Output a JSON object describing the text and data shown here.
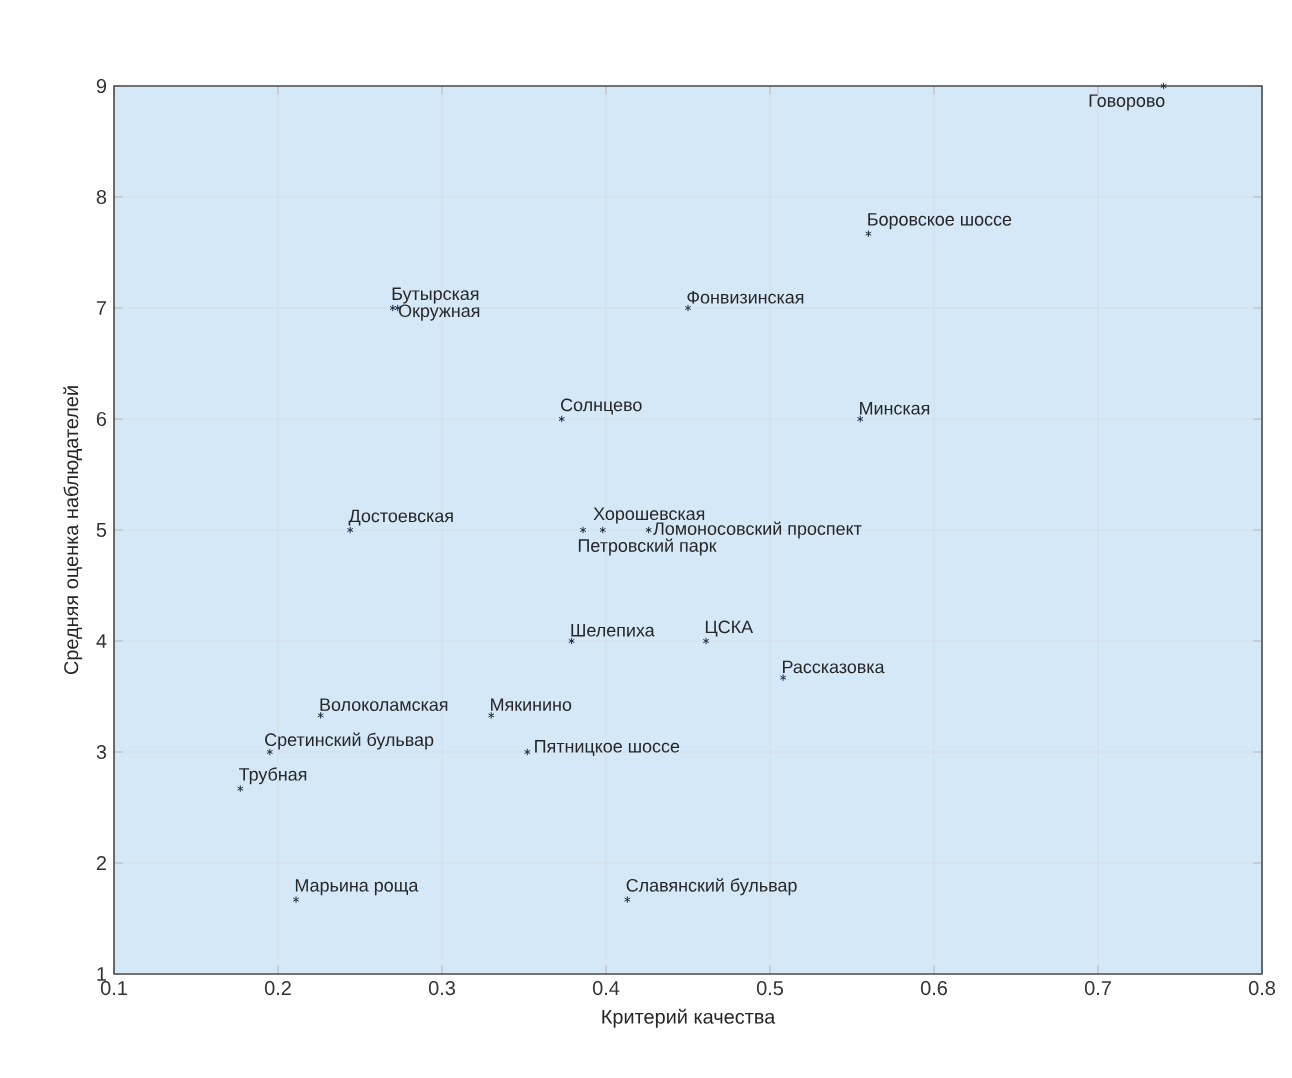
{
  "chart_data": {
    "type": "scatter",
    "xlabel": "Критерий качества",
    "ylabel": "Средняя оценка наблюдателей",
    "series": [
      {
        "color": "#202a44",
        "marker": "cross",
        "x": [
          0.74,
          0.56,
          0.45,
          0.27,
          0.273,
          0.373,
          0.555,
          0.244,
          0.398,
          0.386,
          0.426,
          0.379,
          0.461,
          0.508,
          0.226,
          0.33,
          0.195,
          0.352,
          0.177,
          0.211,
          0.413
        ],
        "values": [
          9,
          7.67,
          7,
          7,
          7,
          6,
          6,
          5,
          5,
          5,
          5,
          4,
          4,
          3.67,
          3.33,
          3.33,
          3,
          3,
          2.67,
          1.67,
          1.67
        ]
      }
    ],
    "annotations": [
      {
        "text": "Говорово",
        "x": 0.74,
        "y": 9
      },
      {
        "text": "Боровское шоссе",
        "x": 0.56,
        "y": 7.67
      },
      {
        "text": "Фонвизинская",
        "x": 0.45,
        "y": 7
      },
      {
        "text": "Бутырская",
        "x": 0.27,
        "y": 7
      },
      {
        "text": "Окружная",
        "x": 0.273,
        "y": 7
      },
      {
        "text": "Солнцево",
        "x": 0.373,
        "y": 6
      },
      {
        "text": "Минская",
        "x": 0.555,
        "y": 6
      },
      {
        "text": "Достоевская",
        "x": 0.244,
        "y": 5
      },
      {
        "text": "Хорошевская",
        "x": 0.398,
        "y": 5
      },
      {
        "text": "Петровский парк",
        "x": 0.386,
        "y": 5
      },
      {
        "text": "Ломоносовский проспект",
        "x": 0.426,
        "y": 5
      },
      {
        "text": "Шелепиха",
        "x": 0.379,
        "y": 4
      },
      {
        "text": "ЦСКА",
        "x": 0.461,
        "y": 4
      },
      {
        "text": "Рассказовка",
        "x": 0.508,
        "y": 3.67
      },
      {
        "text": "Волоколамская",
        "x": 0.226,
        "y": 3.33
      },
      {
        "text": "Мякинино",
        "x": 0.33,
        "y": 3.33
      },
      {
        "text": "Сретинский бульвар",
        "x": 0.195,
        "y": 3
      },
      {
        "text": "Пятницкое шоссе",
        "x": 0.352,
        "y": 3
      },
      {
        "text": "Трубная",
        "x": 0.177,
        "y": 2.67
      },
      {
        "text": "Марьина роща",
        "x": 0.211,
        "y": 1.67
      },
      {
        "text": "Славянский бульвар",
        "x": 0.413,
        "y": 1.67
      }
    ],
    "xlim": [
      0.1,
      0.8
    ],
    "ylim": [
      1,
      9
    ],
    "xticks": [
      0.1,
      0.2,
      0.3,
      0.4,
      0.5,
      0.6,
      0.7,
      0.8
    ],
    "yticks": [
      1,
      2,
      3,
      4,
      5,
      6,
      7,
      8,
      9
    ],
    "grid": true
  }
}
